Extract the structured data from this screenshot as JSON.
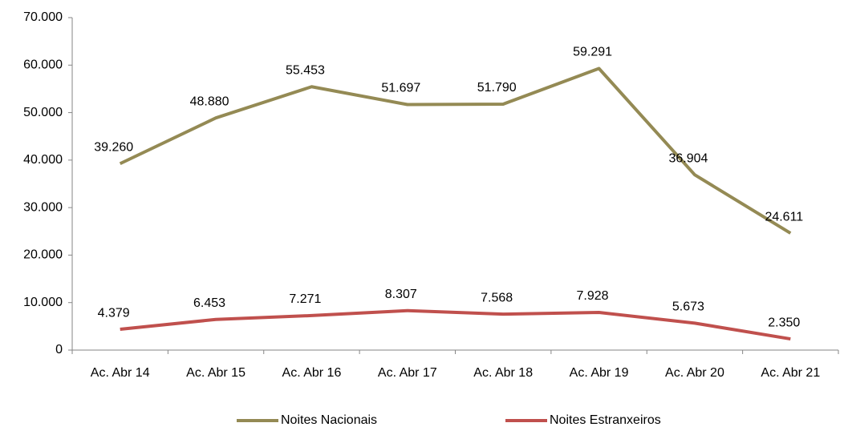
{
  "chart_data": {
    "type": "line",
    "categories": [
      "Ac. Abr 14",
      "Ac. Abr 15",
      "Ac. Abr 16",
      "Ac. Abr 17",
      "Ac. Abr 18",
      "Ac. Abr 19",
      "Ac. Abr 20",
      "Ac. Abr 21"
    ],
    "series": [
      {
        "name": "Noites Nacionais",
        "color": "#948a54",
        "values": [
          39260,
          48880,
          55453,
          51697,
          51790,
          59291,
          36904,
          24611
        ],
        "value_labels": [
          "39.260",
          "48.880",
          "55.453",
          "51.697",
          "51.790",
          "59.291",
          "36.904",
          "24.611"
        ]
      },
      {
        "name": "Noites Estranxeiros",
        "color": "#c0504d",
        "values": [
          4379,
          6453,
          7271,
          8307,
          7568,
          7928,
          5673,
          2350
        ],
        "value_labels": [
          "4.379",
          "6.453",
          "7.271",
          "8.307",
          "7.568",
          "7.928",
          "5.673",
          "2.350"
        ]
      }
    ],
    "ylim": [
      0,
      70000
    ],
    "yticks": [
      0,
      {
        "value": 10000,
        "label": "10.000"
      },
      {
        "value": 20000,
        "label": "20.000"
      },
      {
        "value": 30000,
        "label": "30.000"
      },
      {
        "value": 40000,
        "label": "40.000"
      },
      {
        "value": 50000,
        "label": "50.000"
      },
      {
        "value": 60000,
        "label": "60.000"
      },
      {
        "value": 70000,
        "label": "70.000"
      }
    ],
    "grid": false,
    "legend": "bottom"
  }
}
